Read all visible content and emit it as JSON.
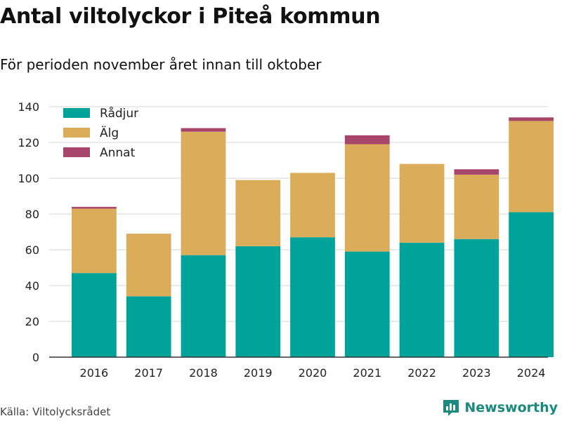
{
  "title": "Antal viltolyckor i Piteå kommun",
  "subtitle": "För perioden november året innan till oktober",
  "source": "Källa: Viltolycksrådet",
  "brand": {
    "name": "Newsworthy",
    "icon": "bar-chart-logo-icon",
    "color": "#1a8a7e"
  },
  "chart_data": {
    "type": "bar",
    "stacked": true,
    "categories": [
      "2016",
      "2017",
      "2018",
      "2019",
      "2020",
      "2021",
      "2022",
      "2023",
      "2024"
    ],
    "series": [
      {
        "name": "Rådjur",
        "color": "#00a39a",
        "values": [
          47,
          34,
          57,
          62,
          67,
          59,
          64,
          66,
          81
        ]
      },
      {
        "name": "Älg",
        "color": "#dbad5b",
        "values": [
          36,
          35,
          69,
          37,
          36,
          60,
          44,
          36,
          51
        ]
      },
      {
        "name": "Annat",
        "color": "#a8456a",
        "values": [
          1,
          0,
          2,
          0,
          0,
          5,
          0,
          3,
          2
        ]
      }
    ],
    "ylim": [
      0,
      140
    ],
    "yticks": [
      0,
      20,
      40,
      60,
      80,
      100,
      120,
      140
    ],
    "grid": true,
    "legend_position": "top-left"
  }
}
